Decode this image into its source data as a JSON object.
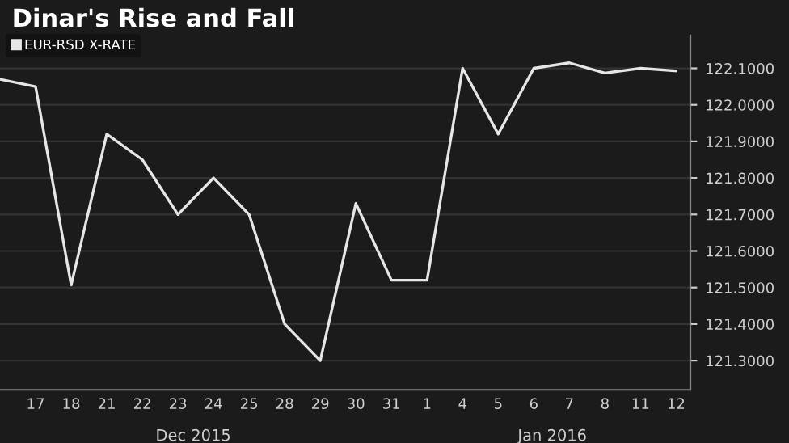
{
  "chart_data": {
    "type": "line",
    "title": "Dinar's Rise and Fall",
    "categories": [
      null,
      "17",
      "18",
      "21",
      "22",
      "23",
      "24",
      "25",
      "28",
      "29",
      "30",
      "31",
      "1",
      "4",
      "5",
      "6",
      "7",
      "8",
      "11",
      "12"
    ],
    "series": [
      {
        "name": "EUR-RSD X-RATE",
        "color": "#e6e6e6",
        "values": [
          122.07,
          122.05,
          121.507,
          121.92,
          121.85,
          121.7,
          121.8,
          121.7,
          121.4,
          121.3,
          121.73,
          121.52,
          121.52,
          122.1,
          121.92,
          122.1,
          122.115,
          122.087,
          122.1,
          122.093
        ]
      }
    ],
    "ylim": [
      121.22,
      122.19
    ],
    "yticks": [
      {
        "value": 121.3,
        "label": "121.3000"
      },
      {
        "value": 121.4,
        "label": "121.4000"
      },
      {
        "value": 121.5,
        "label": "121.5000"
      },
      {
        "value": 121.6,
        "label": "121.6000"
      },
      {
        "value": 121.7,
        "label": "121.7000"
      },
      {
        "value": 121.8,
        "label": "121.8000"
      },
      {
        "value": 121.9,
        "label": "121.9000"
      },
      {
        "value": 122.0,
        "label": "122.0000"
      },
      {
        "value": 122.1,
        "label": "122.1000"
      }
    ],
    "annotations": [
      "Dec 2015",
      "Jan 2016"
    ],
    "grid": "y",
    "legend": "top left",
    "marker": "none",
    "line_style": "solid"
  }
}
